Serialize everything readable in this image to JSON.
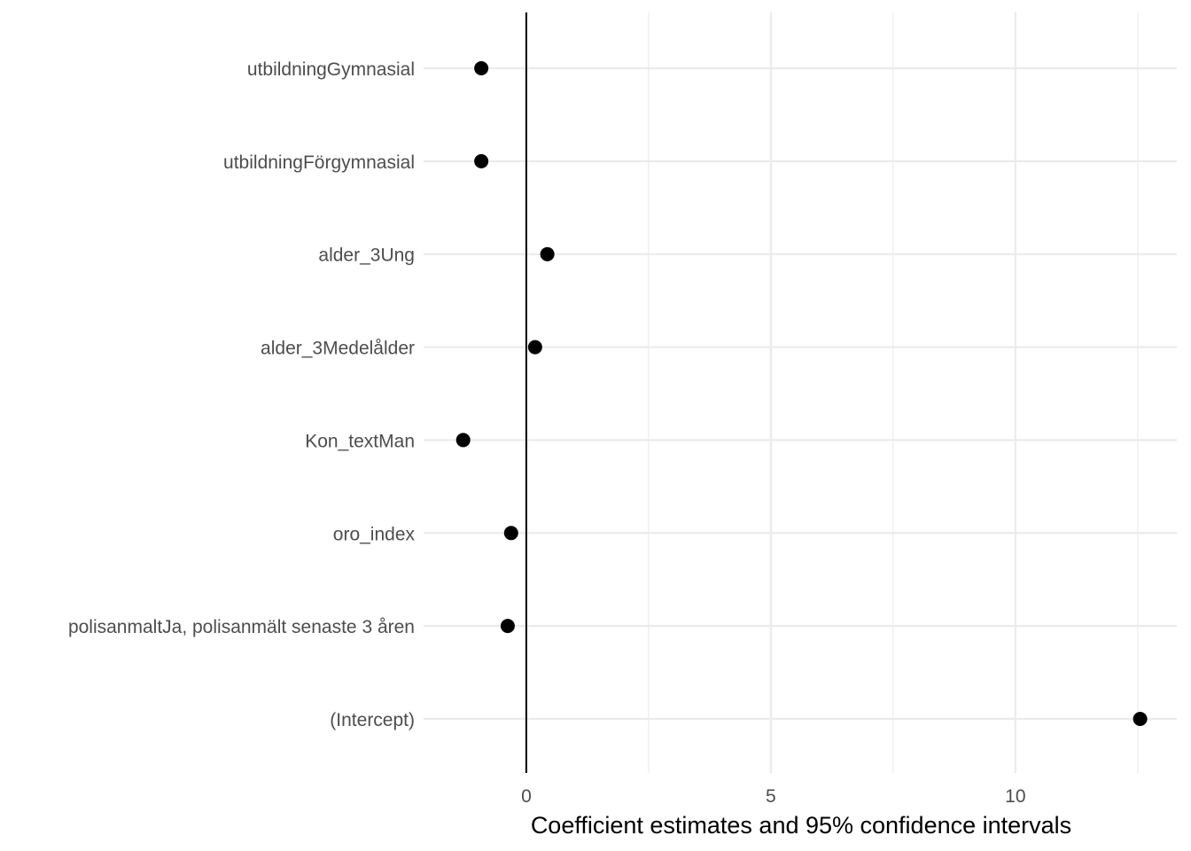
{
  "chart_data": {
    "type": "scatter",
    "title": "",
    "xlabel": "Coefficient estimates and 95% confidence intervals",
    "ylabel": "",
    "categories": [
      "utbildningGymnasial",
      "utbildningFörgymnasial",
      "alder_3Ung",
      "alder_3Medelålder",
      "Kon_textMan",
      "oro_index",
      "polisanmaltJa, polisanmält senaste 3 åren",
      "(Intercept)"
    ],
    "values": [
      -0.92,
      -0.92,
      0.43,
      0.18,
      -1.29,
      -0.31,
      -0.38,
      12.55
    ],
    "xlim": [
      -2.1,
      13.3
    ],
    "x_ticks": [
      0,
      5,
      10
    ],
    "x_tick_labels": [
      "0",
      "5",
      "10"
    ],
    "x_minor_grid": [
      2.5,
      7.5,
      12.5
    ],
    "reference_line": 0,
    "grid": true,
    "legend": "none",
    "point_color": "#000000",
    "grid_color": "#ebebeb"
  }
}
